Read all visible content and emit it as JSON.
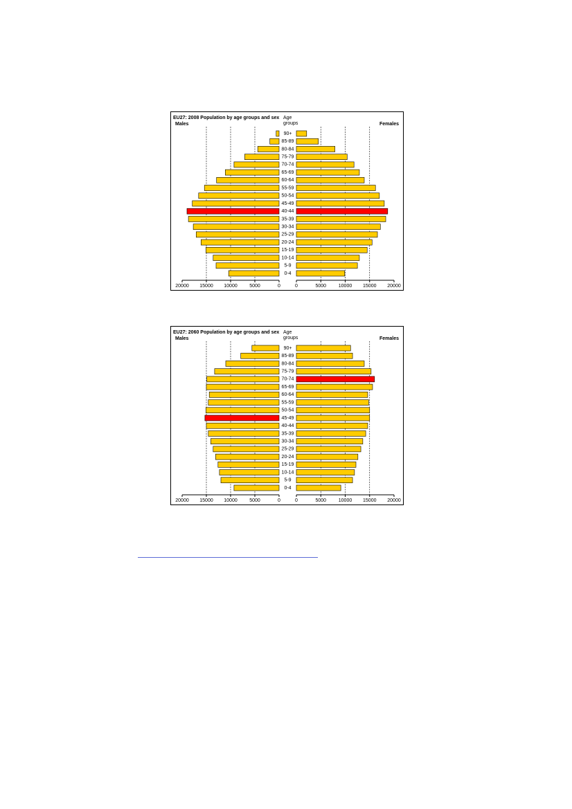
{
  "chart_data": [
    {
      "type": "pyramid",
      "title": "EU27: 2008 Population by age groups and sex",
      "category_label": "Age groups",
      "categories": [
        "90+",
        "85-89",
        "80-84",
        "75-79",
        "70-74",
        "65-69",
        "60-64",
        "55-59",
        "50-54",
        "45-49",
        "40-44",
        "35-39",
        "30-34",
        "25-29",
        "20-24",
        "15-19",
        "10-14",
        "5-9",
        "0-4"
      ],
      "series": [
        {
          "name": "Males",
          "values": [
            600,
            1900,
            4400,
            7100,
            9300,
            11100,
            12900,
            15400,
            16600,
            17900,
            19000,
            18700,
            17700,
            17100,
            16100,
            15100,
            13600,
            13000,
            10400
          ],
          "colors": [
            "#ffcc00",
            "#ffcc00",
            "#ffcc00",
            "#ffcc00",
            "#ffcc00",
            "#ffcc00",
            "#ffcc00",
            "#ffcc00",
            "#ffcc00",
            "#ffcc00",
            "#ff0000",
            "#ffcc00",
            "#ffcc00",
            "#ffcc00",
            "#ffcc00",
            "#ffcc00",
            "#ffcc00",
            "#ffcc00",
            "#ffcc00"
          ]
        },
        {
          "name": "Females",
          "values": [
            2100,
            4500,
            7900,
            10400,
            11800,
            12900,
            13900,
            16200,
            17000,
            18000,
            18700,
            18300,
            17200,
            16600,
            15500,
            14500,
            12900,
            12500,
            9900
          ],
          "colors": [
            "#ffcc00",
            "#ffcc00",
            "#ffcc00",
            "#ffcc00",
            "#ffcc00",
            "#ffcc00",
            "#ffcc00",
            "#ffcc00",
            "#ffcc00",
            "#ffcc00",
            "#ff0000",
            "#ffcc00",
            "#ffcc00",
            "#ffcc00",
            "#ffcc00",
            "#ffcc00",
            "#ffcc00",
            "#ffcc00",
            "#ffcc00"
          ]
        }
      ],
      "xlim": [
        0,
        20000
      ],
      "xticks": [
        0,
        5000,
        10000,
        15000,
        20000
      ],
      "grid": true
    },
    {
      "type": "pyramid",
      "title": "EU27: 2060 Population by age groups and sex",
      "category_label": "Age groups",
      "categories": [
        "90+",
        "85-89",
        "80-84",
        "75-79",
        "70-74",
        "65-69",
        "60-64",
        "55-59",
        "50-54",
        "45-49",
        "40-44",
        "35-39",
        "30-34",
        "25-29",
        "20-24",
        "15-19",
        "10-14",
        "5-9",
        "0-4"
      ],
      "series": [
        {
          "name": "Males",
          "values": [
            5600,
            7900,
            11000,
            13300,
            14900,
            15000,
            14400,
            14600,
            15100,
            15300,
            15000,
            14600,
            14100,
            13600,
            13100,
            12600,
            12300,
            12000,
            9300
          ],
          "colors": [
            "#ffcc00",
            "#ffcc00",
            "#ffcc00",
            "#ffcc00",
            "#ffcc00",
            "#ffcc00",
            "#ffcc00",
            "#ffcc00",
            "#ffcc00",
            "#ff0000",
            "#ffcc00",
            "#ffcc00",
            "#ffcc00",
            "#ffcc00",
            "#ffcc00",
            "#ffcc00",
            "#ffcc00",
            "#ffcc00",
            "#ffcc00"
          ]
        },
        {
          "name": "Females",
          "values": [
            11100,
            11500,
            13900,
            15300,
            16000,
            15600,
            14600,
            14800,
            15000,
            15000,
            14600,
            14200,
            13600,
            13200,
            12600,
            12200,
            11900,
            11500,
            9100
          ],
          "colors": [
            "#ffcc00",
            "#ffcc00",
            "#ffcc00",
            "#ffcc00",
            "#ff0000",
            "#ffcc00",
            "#ffcc00",
            "#ffcc00",
            "#ffcc00",
            "#ffcc00",
            "#ffcc00",
            "#ffcc00",
            "#ffcc00",
            "#ffcc00",
            "#ffcc00",
            "#ffcc00",
            "#ffcc00",
            "#ffcc00",
            "#ffcc00"
          ]
        }
      ],
      "xlim": [
        0,
        20000
      ],
      "xticks": [
        0,
        5000,
        10000,
        15000,
        20000
      ],
      "grid": true
    }
  ]
}
